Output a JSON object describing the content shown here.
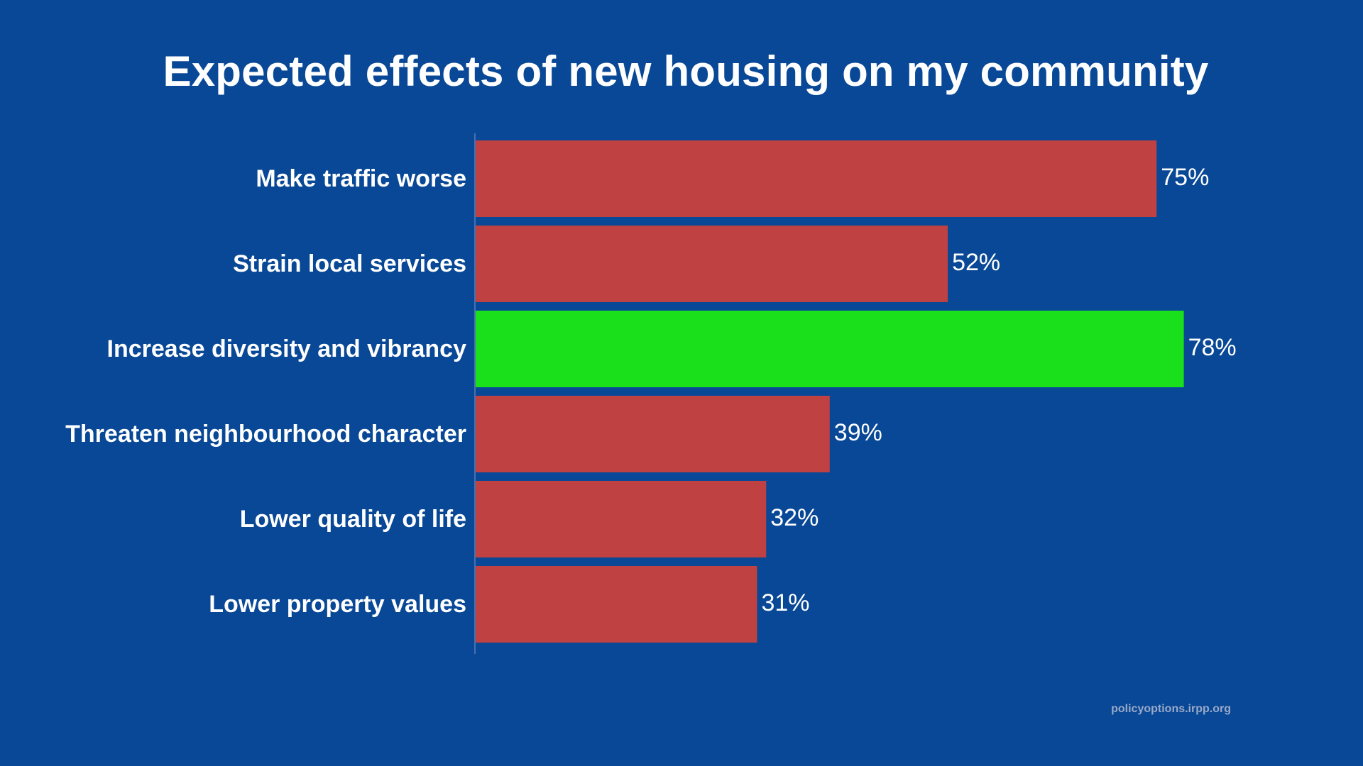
{
  "chart_data": {
    "type": "bar",
    "orientation": "horizontal",
    "title": "Expected effects of new housing on my community",
    "categories": [
      "Make traffic worse",
      "Strain local services",
      "Increase diversity and vibrancy",
      "Threaten neighbourhood character",
      "Lower quality of life",
      "Lower property values"
    ],
    "values": [
      75,
      52,
      78,
      39,
      32,
      31
    ],
    "value_labels": [
      "75%",
      "52%",
      "78%",
      "39%",
      "32%",
      "31%"
    ],
    "bar_colors": [
      "#bf4142",
      "#bf4142",
      "#19e01a",
      "#bf4142",
      "#bf4142",
      "#bf4142"
    ],
    "xlabel": "",
    "ylabel": "",
    "xlim": [
      0,
      100
    ],
    "grid": false,
    "legend": "none"
  },
  "colors": {
    "background": "#084896",
    "negative_bar": "#bf4142",
    "positive_bar": "#19e01a",
    "text": "#ffffff",
    "axis": "#5c7fb8"
  },
  "footer": {
    "source": "policyoptions.irpp.org"
  }
}
